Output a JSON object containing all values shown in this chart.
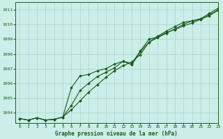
{
  "title": "Graphe pression niveau de la mer (hPa)",
  "background_color": "#cceee8",
  "grid_color": "#aad4cc",
  "line_color": "#1a5c1a",
  "marker_color": "#1a5c1a",
  "xlim": [
    -0.5,
    23
  ],
  "ylim": [
    1003.3,
    1011.5
  ],
  "yticks": [
    1004,
    1005,
    1006,
    1007,
    1008,
    1009,
    1010,
    1011
  ],
  "xticks": [
    0,
    1,
    2,
    3,
    4,
    5,
    6,
    7,
    8,
    9,
    10,
    11,
    12,
    13,
    14,
    15,
    16,
    17,
    18,
    19,
    20,
    21,
    22,
    23
  ],
  "series1": [
    1003.6,
    1003.5,
    1003.65,
    1003.5,
    1003.55,
    1003.7,
    1004.2,
    1004.8,
    1005.4,
    1005.9,
    1006.4,
    1006.85,
    1007.2,
    1007.45,
    1007.95,
    1008.8,
    1009.2,
    1009.55,
    1009.85,
    1010.15,
    1010.25,
    1010.35,
    1010.65,
    1011.0
  ],
  "series2": [
    1003.6,
    1003.5,
    1003.65,
    1003.5,
    1003.55,
    1003.7,
    1004.5,
    1005.5,
    1006.0,
    1006.45,
    1006.75,
    1007.05,
    1007.5,
    1007.25,
    1008.15,
    1008.8,
    1009.1,
    1009.4,
    1009.7,
    1010.0,
    1010.25,
    1010.4,
    1010.75,
    1011.1
  ],
  "series3": [
    1003.6,
    1003.5,
    1003.65,
    1003.5,
    1003.55,
    1003.7,
    1005.7,
    1006.5,
    1006.6,
    1006.85,
    1007.0,
    1007.3,
    1007.5,
    1007.35,
    1008.2,
    1009.0,
    1009.15,
    1009.45,
    1009.65,
    1009.9,
    1010.1,
    1010.35,
    1010.6,
    1010.95
  ]
}
